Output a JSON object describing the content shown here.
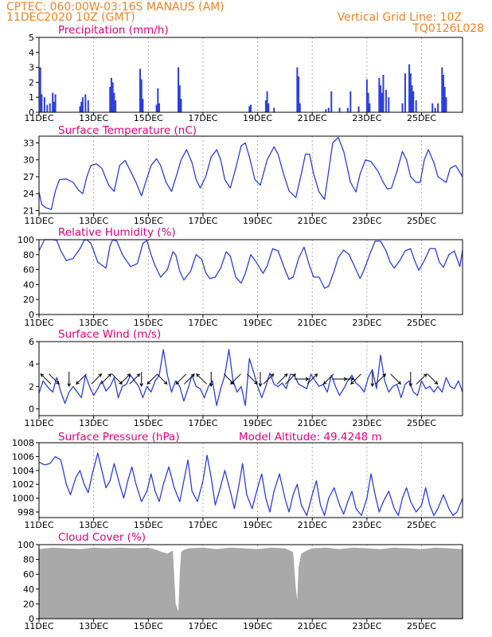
{
  "header": {
    "line1": "CPTEC:   060:00W-03:16S   MANAUS (AM)",
    "line2": "11DEC2020 10Z (GMT)",
    "grid_note": "Vertical Grid Line: 10Z",
    "code": "TQ0126L028"
  },
  "colors": {
    "header": "#f58220",
    "title": "#e2007a",
    "series": "#2b3fe0",
    "cloud": "#a9a9a9",
    "arrow": "#000000"
  },
  "chart_data": [
    {
      "type": "bar",
      "title": "Precipitation (mm/h)",
      "x_range": [
        0,
        15.5
      ],
      "x_ticks": [
        "11DEC",
        "13DEC",
        "15DEC",
        "17DEC",
        "19DEC",
        "21DEC",
        "23DEC",
        "25DEC"
      ],
      "x_tick_days": [
        0,
        2,
        4,
        6,
        8,
        10,
        12,
        14
      ],
      "y_ticks": [
        "0",
        "1",
        "2",
        "3",
        "4",
        "5"
      ],
      "ylim": [
        0,
        5
      ],
      "x": [
        0.05,
        0.1,
        0.2,
        0.3,
        0.4,
        0.5,
        0.55,
        0.6,
        1.5,
        1.55,
        1.6,
        1.7,
        1.8,
        2.6,
        2.65,
        2.7,
        2.75,
        2.8,
        3.7,
        3.75,
        3.8,
        4.3,
        4.35,
        4.4,
        5.1,
        5.15,
        5.2,
        7.7,
        7.75,
        8.3,
        8.35,
        8.4,
        8.6,
        9.45,
        9.5,
        9.55,
        10.5,
        10.6,
        10.7,
        11.0,
        11.3,
        11.4,
        11.7,
        12.0,
        12.05,
        12.1,
        12.45,
        12.5,
        12.55,
        12.6,
        12.7,
        12.8,
        13.3,
        13.4,
        13.55,
        13.6,
        13.65,
        13.7,
        13.8,
        14.4,
        14.5,
        14.6,
        14.75,
        14.8,
        14.85,
        14.9
      ],
      "values": [
        3.0,
        1.2,
        1.0,
        0.5,
        0.6,
        1.3,
        0.7,
        1.2,
        0.4,
        0.7,
        1.0,
        1.2,
        0.8,
        1.7,
        2.3,
        2.0,
        1.3,
        0.8,
        2.9,
        2.2,
        0.9,
        0.5,
        1.6,
        0.6,
        3.0,
        1.8,
        0.9,
        0.4,
        0.5,
        0.8,
        1.4,
        0.6,
        0.3,
        3.0,
        2.4,
        0.6,
        0.2,
        0.3,
        1.4,
        0.3,
        0.3,
        1.4,
        0.4,
        2.2,
        1.3,
        0.6,
        2.3,
        1.8,
        1.3,
        2.5,
        1.5,
        1.0,
        0.6,
        2.6,
        3.2,
        2.6,
        1.8,
        1.4,
        0.8,
        0.6,
        0.3,
        0.6,
        3.0,
        2.5,
        1.7,
        1.0
      ]
    },
    {
      "type": "line",
      "title": "Surface Temperature (nC)",
      "x_range": [
        0,
        15.5
      ],
      "x_ticks": [
        "11DEC",
        "13DEC",
        "15DEC",
        "17DEC",
        "19DEC",
        "21DEC",
        "23DEC",
        "25DEC"
      ],
      "x_tick_days": [
        0,
        2,
        4,
        6,
        8,
        10,
        12,
        14
      ],
      "y_ticks": [
        "21",
        "24",
        "27",
        "30",
        "33"
      ],
      "ylim": [
        20.5,
        34.2
      ],
      "y_tick_values": [
        21,
        24,
        27,
        30,
        33
      ],
      "x": [
        0,
        0.1,
        0.25,
        0.45,
        0.6,
        0.75,
        1.0,
        1.25,
        1.45,
        1.6,
        1.75,
        1.9,
        2.1,
        2.3,
        2.55,
        2.75,
        2.95,
        3.15,
        3.35,
        3.55,
        3.75,
        3.9,
        4.1,
        4.3,
        4.45,
        4.65,
        4.85,
        5.05,
        5.2,
        5.4,
        5.6,
        5.75,
        5.9,
        6.1,
        6.3,
        6.5,
        6.65,
        6.8,
        7.0,
        7.2,
        7.4,
        7.55,
        7.7,
        7.9,
        8.1,
        8.35,
        8.6,
        8.75,
        8.95,
        9.15,
        9.4,
        9.6,
        9.75,
        9.9,
        10.05,
        10.25,
        10.45,
        10.6,
        10.75,
        10.95,
        11.15,
        11.4,
        11.6,
        11.75,
        11.95,
        12.15,
        12.4,
        12.6,
        12.75,
        12.9,
        13.1,
        13.3,
        13.45,
        13.6,
        13.8,
        13.95,
        14.1,
        14.25,
        14.45,
        14.6,
        14.75,
        14.9,
        15.05,
        15.25,
        15.5
      ],
      "values": [
        24.3,
        22.1,
        21.5,
        21.2,
        24.5,
        26.5,
        26.6,
        26.0,
        24.6,
        24.0,
        27.0,
        29.0,
        29.3,
        28.5,
        25.5,
        24.4,
        29.0,
        29.9,
        28.0,
        26.0,
        23.6,
        26.0,
        29.0,
        30.2,
        29.0,
        26.0,
        24.4,
        27.5,
        30.0,
        31.8,
        29.5,
        26.5,
        25.0,
        27.0,
        30.5,
        31.8,
        30.0,
        26.5,
        25.0,
        28.5,
        32.5,
        33.0,
        30.5,
        26.5,
        25.5,
        30.0,
        32.3,
        31.0,
        27.5,
        24.5,
        23.3,
        27.5,
        31.0,
        31.0,
        27.5,
        24.3,
        23.0,
        28.0,
        33.0,
        34.0,
        31.5,
        26.0,
        24.3,
        27.5,
        30.0,
        29.7,
        28.0,
        26.0,
        24.8,
        25.0,
        28.0,
        31.5,
        30.0,
        27.0,
        26.0,
        26.0,
        30.0,
        31.8,
        29.5,
        27.0,
        26.5,
        26.0,
        28.5,
        29.0,
        27.0
      ]
    },
    {
      "type": "line",
      "title": "Relative Humidity (%)",
      "x_range": [
        0,
        15.5
      ],
      "x_ticks": [
        "11DEC",
        "13DEC",
        "15DEC",
        "17DEC",
        "19DEC",
        "21DEC",
        "23DEC",
        "25DEC"
      ],
      "x_tick_days": [
        0,
        2,
        4,
        6,
        8,
        10,
        12,
        14
      ],
      "y_ticks": [
        "0",
        "20",
        "40",
        "60",
        "80",
        "100"
      ],
      "ylim": [
        0,
        100
      ],
      "y_tick_values": [
        0,
        20,
        40,
        60,
        80,
        100
      ],
      "x": [
        0,
        0.2,
        0.5,
        0.65,
        0.8,
        1.0,
        1.25,
        1.5,
        1.65,
        1.75,
        1.9,
        2.15,
        2.45,
        2.6,
        2.7,
        2.85,
        3.05,
        3.35,
        3.6,
        3.8,
        3.95,
        4.1,
        4.25,
        4.45,
        4.7,
        4.9,
        5.0,
        5.15,
        5.3,
        5.55,
        5.75,
        5.95,
        6.1,
        6.25,
        6.45,
        6.65,
        6.85,
        7.0,
        7.2,
        7.4,
        7.55,
        7.75,
        7.95,
        8.2,
        8.35,
        8.55,
        8.75,
        9.0,
        9.15,
        9.3,
        9.5,
        9.7,
        9.9,
        10.05,
        10.25,
        10.45,
        10.6,
        10.8,
        10.95,
        11.15,
        11.35,
        11.55,
        11.75,
        11.9,
        12.1,
        12.3,
        12.5,
        12.7,
        12.85,
        13.0,
        13.2,
        13.4,
        13.6,
        13.75,
        13.9,
        14.1,
        14.3,
        14.5,
        14.65,
        14.8,
        15.0,
        15.2,
        15.4,
        15.5
      ],
      "values": [
        85,
        100,
        100,
        99,
        85,
        72,
        75,
        88,
        99,
        100,
        95,
        70,
        62,
        92,
        100,
        98,
        80,
        64,
        68,
        95,
        99,
        80,
        65,
        50,
        60,
        84,
        80,
        58,
        46,
        58,
        80,
        74,
        56,
        48,
        50,
        62,
        84,
        78,
        50,
        42,
        55,
        80,
        70,
        55,
        65,
        88,
        85,
        60,
        47,
        50,
        75,
        90,
        65,
        50,
        50,
        35,
        38,
        58,
        76,
        86,
        80,
        64,
        48,
        60,
        80,
        98,
        98,
        85,
        70,
        62,
        72,
        85,
        88,
        72,
        59,
        72,
        88,
        88,
        70,
        63,
        80,
        85,
        64,
        86
      ],
      "connect_at_top": true
    },
    {
      "type": "line",
      "title": "Surface Wind (m/s)",
      "x_range": [
        0,
        15.5
      ],
      "x_ticks": [
        "11DEC",
        "13DEC",
        "15DEC",
        "17DEC",
        "19DEC",
        "21DEC",
        "23DEC",
        "25DEC"
      ],
      "x_tick_days": [
        0,
        2,
        4,
        6,
        8,
        10,
        12,
        14
      ],
      "y_ticks": [
        "0",
        "2",
        "4",
        "6"
      ],
      "ylim": [
        -0.6,
        6
      ],
      "y_tick_values": [
        0,
        2,
        4,
        6
      ],
      "x": [
        0,
        0.15,
        0.3,
        0.5,
        0.65,
        0.8,
        0.95,
        1.1,
        1.25,
        1.4,
        1.55,
        1.7,
        1.85,
        2.0,
        2.15,
        2.3,
        2.45,
        2.6,
        2.75,
        2.9,
        3.05,
        3.2,
        3.35,
        3.5,
        3.65,
        3.8,
        3.95,
        4.1,
        4.25,
        4.4,
        4.55,
        4.7,
        4.85,
        5.0,
        5.15,
        5.3,
        5.45,
        5.6,
        5.75,
        5.9,
        6.05,
        6.2,
        6.35,
        6.5,
        6.65,
        6.8,
        6.95,
        7.1,
        7.25,
        7.4,
        7.55,
        7.7,
        7.85,
        8.0,
        8.15,
        8.3,
        8.45,
        8.6,
        8.75,
        8.9,
        9.05,
        9.2,
        9.35,
        9.5,
        9.65,
        9.8,
        9.95,
        10.1,
        10.25,
        10.4,
        10.55,
        10.7,
        10.85,
        11.0,
        11.15,
        11.3,
        11.45,
        11.6,
        11.75,
        11.9,
        12.05,
        12.2,
        12.35,
        12.5,
        12.65,
        12.8,
        12.95,
        13.1,
        13.25,
        13.4,
        13.55,
        13.7,
        13.85,
        14.0,
        14.15,
        14.3,
        14.45,
        14.6,
        14.75,
        14.9,
        15.05,
        15.2,
        15.35,
        15.5
      ],
      "values": [
        1.4,
        2.5,
        2.0,
        1.5,
        2.8,
        1.5,
        0.5,
        1.5,
        2.0,
        1.5,
        1.0,
        3.0,
        2.0,
        1.2,
        1.8,
        2.5,
        1.6,
        2.0,
        2.8,
        1.0,
        2.0,
        2.2,
        3.0,
        2.5,
        2.0,
        1.0,
        2.0,
        1.5,
        2.5,
        3.0,
        5.3,
        3.0,
        1.5,
        2.5,
        2.0,
        0.7,
        1.8,
        3.0,
        2.0,
        1.8,
        1.0,
        2.0,
        2.5,
        0.3,
        1.8,
        3.0,
        5.3,
        2.5,
        1.5,
        2.0,
        0.3,
        4.5,
        3.3,
        2.0,
        1.0,
        2.0,
        3.2,
        2.2,
        2.0,
        2.3,
        1.8,
        3.1,
        3.0,
        2.2,
        2.0,
        1.8,
        3.1,
        2.5,
        2.0,
        2.2,
        1.5,
        3.0,
        2.0,
        1.2,
        1.8,
        2.5,
        3.0,
        2.3,
        2.0,
        1.5,
        2.8,
        3.5,
        1.8,
        4.8,
        2.5,
        1.5,
        2.0,
        2.2,
        1.0,
        2.2,
        2.5,
        1.5,
        1.2,
        2.5,
        1.8,
        2.0,
        1.5,
        2.0,
        1.5,
        2.8,
        2.0,
        1.8,
        2.5,
        1.5
      ]
    },
    {
      "type": "line",
      "title": "Surface Pressure (hPa)",
      "annotation": "Model Altitude: 49.4248 m",
      "x_range": [
        0,
        15.5
      ],
      "x_ticks": [
        "11DEC",
        "13DEC",
        "15DEC",
        "17DEC",
        "19DEC",
        "21DEC",
        "23DEC",
        "25DEC"
      ],
      "x_tick_days": [
        0,
        2,
        4,
        6,
        8,
        10,
        12,
        14
      ],
      "y_ticks": [
        "998",
        "1000",
        "1002",
        "1004",
        "1006",
        "1008"
      ],
      "ylim": [
        997.2,
        1008
      ],
      "y_tick_values": [
        998,
        1000,
        1002,
        1004,
        1006,
        1008
      ],
      "x": [
        0,
        0.2,
        0.4,
        0.6,
        0.8,
        1.0,
        1.15,
        1.35,
        1.5,
        1.65,
        1.8,
        1.95,
        2.15,
        2.3,
        2.45,
        2.6,
        2.75,
        2.95,
        3.1,
        3.25,
        3.4,
        3.55,
        3.75,
        3.95,
        4.1,
        4.25,
        4.4,
        4.55,
        4.75,
        4.95,
        5.15,
        5.3,
        5.45,
        5.6,
        5.8,
        6.0,
        6.15,
        6.3,
        6.45,
        6.6,
        6.8,
        7.0,
        7.15,
        7.3,
        7.45,
        7.6,
        7.8,
        8.0,
        8.15,
        8.3,
        8.45,
        8.6,
        8.8,
        9.0,
        9.15,
        9.3,
        9.45,
        9.6,
        9.8,
        10.0,
        10.15,
        10.3,
        10.45,
        10.6,
        10.8,
        11.0,
        11.15,
        11.3,
        11.45,
        11.6,
        11.8,
        12.0,
        12.15,
        12.3,
        12.45,
        12.6,
        12.8,
        13.0,
        13.15,
        13.3,
        13.45,
        13.6,
        13.8,
        14.0,
        14.15,
        14.3,
        14.45,
        14.6,
        14.8,
        15.0,
        15.15,
        15.3,
        15.5
      ],
      "values": [
        1005.2,
        1004.8,
        1005.0,
        1006.0,
        1005.5,
        1002.0,
        1000.5,
        1003.0,
        1004.0,
        1002.0,
        1000.8,
        1003.5,
        1006.5,
        1004.0,
        1001.5,
        1002.5,
        1005.0,
        1002.0,
        1000.0,
        1002.5,
        1004.5,
        1002.0,
        999.5,
        1001.0,
        1003.5,
        1001.0,
        999.5,
        1002.0,
        1004.5,
        1001.5,
        999.5,
        1002.5,
        1005.5,
        1001.0,
        999.5,
        1002.5,
        1006.2,
        1003.0,
        999.0,
        1001.0,
        1004.0,
        1001.0,
        998.5,
        1001.5,
        1005.0,
        1000.5,
        998.5,
        1001.5,
        1003.5,
        1000.0,
        998.0,
        1001.0,
        1003.5,
        1000.0,
        998.0,
        1000.5,
        1002.0,
        999.0,
        997.5,
        1000.5,
        1002.5,
        999.0,
        997.5,
        1000.0,
        1001.5,
        999.0,
        997.7,
        999.5,
        1001.0,
        998.5,
        997.5,
        1000.0,
        1003.5,
        1000.5,
        998.0,
        999.5,
        1001.0,
        998.5,
        997.5,
        1000.0,
        1001.5,
        999.5,
        998.0,
        999.0,
        1001.5,
        999.0,
        997.5,
        998.5,
        1000.5,
        998.5,
        997.5,
        998.0,
        1000.0
      ]
    },
    {
      "type": "area",
      "title": "Cloud Cover (%)",
      "x_range": [
        0,
        15.5
      ],
      "x_ticks": [
        "11DEC",
        "13DEC",
        "15DEC",
        "17DEC",
        "19DEC",
        "21DEC",
        "23DEC",
        "25DEC"
      ],
      "x_tick_days": [
        0,
        2,
        4,
        6,
        8,
        10,
        12,
        14
      ],
      "y_ticks": [
        "0",
        "20",
        "40",
        "60",
        "80",
        "100"
      ],
      "ylim": [
        0,
        100
      ],
      "y_tick_values": [
        0,
        20,
        40,
        60,
        80,
        100
      ],
      "x": [
        0,
        0.5,
        1.0,
        1.5,
        2.0,
        2.5,
        3.0,
        3.5,
        4.0,
        4.3,
        4.5,
        4.7,
        4.9,
        5.0,
        5.1,
        5.15,
        5.2,
        5.3,
        5.5,
        6.0,
        6.5,
        7.0,
        7.5,
        8.0,
        8.5,
        9.0,
        9.3,
        9.4,
        9.45,
        9.5,
        9.6,
        9.8,
        10.0,
        10.5,
        11.0,
        11.5,
        12.0,
        12.5,
        13.0,
        13.5,
        14.0,
        14.5,
        15.0,
        15.5
      ],
      "values": [
        94,
        96,
        95,
        94,
        96,
        95,
        96,
        95,
        96,
        93,
        90,
        88,
        92,
        20,
        10,
        60,
        90,
        93,
        95,
        96,
        94,
        96,
        95,
        94,
        96,
        95,
        90,
        40,
        25,
        70,
        88,
        92,
        95,
        96,
        94,
        96,
        95,
        94,
        96,
        95,
        94,
        96,
        95,
        94
      ]
    }
  ],
  "wind_arrows": [
    {
      "day": 0.25,
      "dir": "NW"
    },
    {
      "day": 0.55,
      "dir": "SE"
    },
    {
      "day": 1.1,
      "dir": "S"
    },
    {
      "day": 1.55,
      "dir": "SW"
    },
    {
      "day": 2.1,
      "dir": "NE"
    },
    {
      "day": 2.45,
      "dir": "NE"
    },
    {
      "day": 2.85,
      "dir": "SE"
    },
    {
      "day": 3.15,
      "dir": "NE"
    },
    {
      "day": 3.5,
      "dir": "NE"
    },
    {
      "day": 3.75,
      "dir": "S"
    },
    {
      "day": 4.15,
      "dir": "SW"
    },
    {
      "day": 4.5,
      "dir": "SE"
    },
    {
      "day": 5.2,
      "dir": "SW"
    },
    {
      "day": 5.5,
      "dir": "NE"
    },
    {
      "day": 5.95,
      "dir": "NW"
    },
    {
      "day": 6.3,
      "dir": "S"
    },
    {
      "day": 6.95,
      "dir": "SE"
    },
    {
      "day": 7.2,
      "dir": "SW"
    },
    {
      "day": 7.8,
      "dir": "SE"
    },
    {
      "day": 8.1,
      "dir": "S"
    },
    {
      "day": 8.4,
      "dir": "NE"
    },
    {
      "day": 8.9,
      "dir": "NE"
    },
    {
      "day": 9.2,
      "dir": "NE"
    },
    {
      "day": 9.6,
      "dir": "E"
    },
    {
      "day": 10.0,
      "dir": "NE"
    },
    {
      "day": 10.6,
      "dir": "SW"
    },
    {
      "day": 11.0,
      "dir": "E"
    },
    {
      "day": 11.25,
      "dir": "E"
    },
    {
      "day": 11.6,
      "dir": "SW"
    },
    {
      "day": 12.2,
      "dir": "S"
    },
    {
      "day": 12.5,
      "dir": "NE"
    },
    {
      "day": 13.05,
      "dir": "SE"
    },
    {
      "day": 13.6,
      "dir": "S"
    },
    {
      "day": 14.0,
      "dir": "NE"
    },
    {
      "day": 14.4,
      "dir": "SE"
    }
  ]
}
